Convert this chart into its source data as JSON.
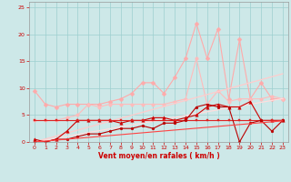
{
  "x": [
    0,
    1,
    2,
    3,
    4,
    5,
    6,
    7,
    8,
    9,
    10,
    11,
    12,
    13,
    14,
    15,
    16,
    17,
    18,
    19,
    20,
    21,
    22,
    23
  ],
  "series": [
    {
      "name": "light_pink_diamond",
      "color": "#ffaaaa",
      "marker": "D",
      "markersize": 2.5,
      "linewidth": 0.8,
      "y": [
        9.5,
        7.0,
        6.5,
        7.0,
        7.0,
        7.0,
        7.0,
        7.5,
        8.0,
        9.0,
        11.0,
        11.0,
        9.0,
        12.0,
        15.5,
        22.0,
        15.5,
        21.0,
        8.0,
        19.0,
        8.0,
        11.0,
        8.0,
        8.0
      ]
    },
    {
      "name": "medium_pink_circle",
      "color": "#ffbbbb",
      "marker": "o",
      "markersize": 2.5,
      "linewidth": 0.8,
      "y": [
        4.0,
        4.0,
        4.0,
        4.5,
        5.0,
        7.0,
        6.5,
        7.0,
        7.0,
        7.0,
        7.0,
        7.0,
        7.0,
        7.5,
        8.0,
        15.5,
        7.0,
        9.5,
        7.5,
        8.0,
        8.0,
        8.0,
        8.5,
        8.0
      ]
    },
    {
      "name": "trend_light1",
      "color": "#ffcccc",
      "marker": null,
      "markersize": 0,
      "linewidth": 0.9,
      "y": [
        0.0,
        0.55,
        1.1,
        1.65,
        2.2,
        2.75,
        3.3,
        3.85,
        4.4,
        4.95,
        5.5,
        6.05,
        6.6,
        7.15,
        7.7,
        8.25,
        8.8,
        9.35,
        9.9,
        10.45,
        11.0,
        11.55,
        12.1,
        12.65
      ]
    },
    {
      "name": "trend_light2",
      "color": "#ffdddd",
      "marker": null,
      "markersize": 0,
      "linewidth": 0.9,
      "y": [
        0.0,
        0.35,
        0.7,
        1.05,
        1.4,
        1.75,
        2.1,
        2.45,
        2.8,
        3.15,
        3.5,
        3.85,
        4.2,
        4.55,
        4.9,
        5.25,
        5.6,
        5.95,
        6.3,
        6.65,
        7.0,
        7.35,
        7.7,
        8.05
      ]
    },
    {
      "name": "dark_red_triangle",
      "color": "#cc0000",
      "marker": "^",
      "markersize": 2.5,
      "linewidth": 0.8,
      "y": [
        0.5,
        0.0,
        0.5,
        2.0,
        4.0,
        4.0,
        4.0,
        4.0,
        3.5,
        4.0,
        4.0,
        4.5,
        4.5,
        4.0,
        4.5,
        5.0,
        6.5,
        7.0,
        6.5,
        6.5,
        7.5,
        4.0,
        4.0,
        4.0
      ]
    },
    {
      "name": "dark_red_square",
      "color": "#dd2222",
      "marker": "s",
      "markersize": 2.0,
      "linewidth": 0.8,
      "y": [
        4.0,
        4.0,
        4.0,
        4.0,
        4.0,
        4.0,
        4.0,
        4.0,
        4.0,
        4.0,
        4.0,
        4.0,
        4.0,
        4.0,
        4.0,
        4.0,
        4.0,
        4.0,
        4.0,
        4.0,
        4.0,
        4.0,
        4.0,
        4.0
      ]
    },
    {
      "name": "dark_red_line",
      "color": "#bb0000",
      "marker": "o",
      "markersize": 2.0,
      "linewidth": 0.8,
      "y": [
        0.0,
        0.0,
        0.5,
        0.5,
        1.0,
        1.5,
        1.5,
        2.0,
        2.5,
        2.5,
        3.0,
        2.5,
        3.5,
        3.5,
        4.0,
        6.5,
        7.0,
        6.5,
        6.5,
        0.0,
        3.5,
        4.0,
        2.0,
        4.0
      ]
    },
    {
      "name": "trend_dark",
      "color": "#ff4444",
      "marker": null,
      "markersize": 0,
      "linewidth": 0.8,
      "y": [
        0.0,
        0.17,
        0.34,
        0.51,
        0.68,
        0.85,
        1.02,
        1.19,
        1.36,
        1.53,
        1.7,
        1.87,
        2.04,
        2.21,
        2.38,
        2.55,
        2.72,
        2.89,
        3.06,
        3.23,
        3.4,
        3.57,
        3.74,
        3.91
      ]
    }
  ],
  "xlabel": "Vent moyen/en rafales ( km/h )",
  "xlim": [
    -0.5,
    23.5
  ],
  "ylim": [
    0,
    26
  ],
  "yticks": [
    0,
    5,
    10,
    15,
    20,
    25
  ],
  "xticks": [
    0,
    1,
    2,
    3,
    4,
    5,
    6,
    7,
    8,
    9,
    10,
    11,
    12,
    13,
    14,
    15,
    16,
    17,
    18,
    19,
    20,
    21,
    22,
    23
  ],
  "bg_color": "#cde8e8",
  "grid_color": "#9dcfcf",
  "xlabel_color": "#cc0000",
  "tick_color": "#cc0000"
}
